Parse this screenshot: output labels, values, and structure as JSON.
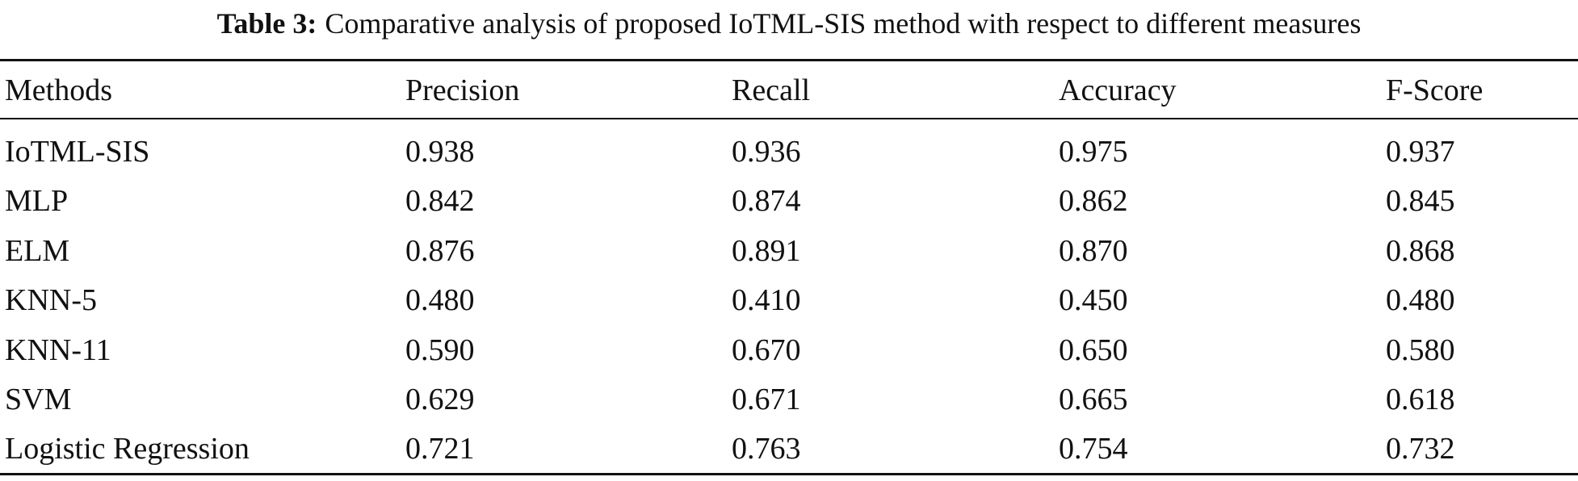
{
  "caption": {
    "label": "Table 3:",
    "text": "Comparative analysis of proposed IoTML-SIS method with respect to different measures"
  },
  "table": {
    "header": [
      "Methods",
      "Precision",
      "Recall",
      "Accuracy",
      "F-Score"
    ],
    "rows": [
      [
        "IoTML-SIS",
        "0.938",
        "0.936",
        "0.975",
        "0.937"
      ],
      [
        "MLP",
        "0.842",
        "0.874",
        "0.862",
        "0.845"
      ],
      [
        "ELM",
        "0.876",
        "0.891",
        "0.870",
        "0.868"
      ],
      [
        "KNN-5",
        "0.480",
        "0.410",
        "0.450",
        "0.480"
      ],
      [
        "KNN-11",
        "0.590",
        "0.670",
        "0.650",
        "0.580"
      ],
      [
        "SVM",
        "0.629",
        "0.671",
        "0.665",
        "0.618"
      ],
      [
        "Logistic Regression",
        "0.721",
        "0.763",
        "0.754",
        "0.732"
      ]
    ]
  }
}
